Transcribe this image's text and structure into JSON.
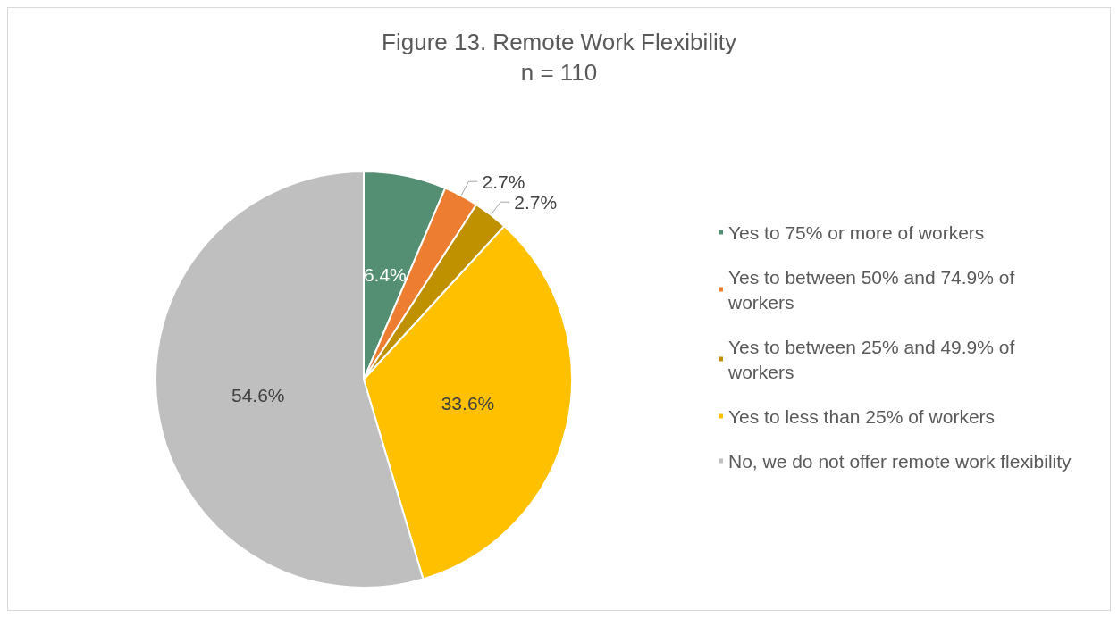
{
  "chart_data": {
    "type": "pie",
    "title": "Figure 13. Remote Work Flexibility",
    "subtitle": "n = 110",
    "categories": [
      "Yes to 75% or more of workers",
      "Yes to between 50% and 74.9% of workers",
      "Yes to between 25% and 49.9% of workers",
      "Yes to less than 25% of workers",
      "No, we do not offer remote work flexibility"
    ],
    "values": [
      6.4,
      2.7,
      2.7,
      33.6,
      54.6
    ],
    "value_labels": [
      "6.4%",
      "2.7%",
      "2.7%",
      "33.6%",
      "54.6%"
    ],
    "colors": [
      "#548f73",
      "#ed7d31",
      "#bf9000",
      "#ffc000",
      "#bfbfbf"
    ],
    "legend": "right"
  }
}
